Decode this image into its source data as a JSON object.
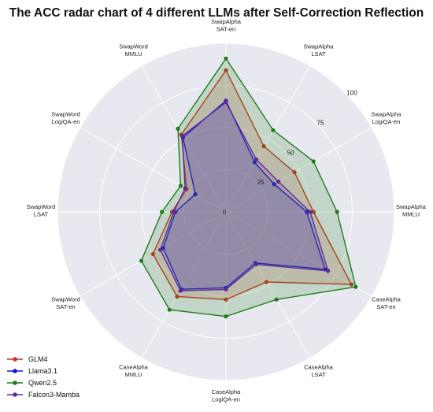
{
  "chart_data": {
    "type": "radar",
    "title": "The ACC radar chart of 4 different LLMs after Self-Correction Reflection",
    "axes": [
      [
        "SwapAlpha",
        "SAT-en"
      ],
      [
        "SwapAlpha",
        "LSAT"
      ],
      [
        "SwapAlpha",
        "LogiQA-en"
      ],
      [
        "SwapAlpha",
        "MMLU"
      ],
      [
        "CaseAlpha",
        "SAT-en"
      ],
      [
        "CaseAlpha",
        "LSAT"
      ],
      [
        "CaseAlpha",
        "LogiQA-en"
      ],
      [
        "CaseAlpha",
        "MMLU"
      ],
      [
        "SwapWord",
        "SAT-en"
      ],
      [
        "SwapWord",
        "LSAT"
      ],
      [
        "SwapWord",
        "LogiQA-en"
      ],
      [
        "SwapWord",
        "MMLU"
      ]
    ],
    "rlim": [
      0,
      100
    ],
    "r_ticks": [
      0,
      25,
      50,
      75,
      100
    ],
    "grid": true,
    "legend_position": "bottom-left",
    "series": [
      {
        "name": "GLM4",
        "color": "#c0391b",
        "values": [
          84,
          45,
          47,
          52,
          86,
          48,
          52,
          58,
          50,
          32,
          27,
          53
        ]
      },
      {
        "name": "Llama3.1",
        "color": "#1515d4",
        "values": [
          66,
          34,
          33,
          48,
          68,
          35,
          45,
          53,
          43,
          30,
          21,
          51
        ]
      },
      {
        "name": "Qwen2.5",
        "color": "#1e7d1a",
        "values": [
          91,
          56,
          60,
          66,
          89,
          60,
          62,
          67,
          58,
          38,
          31,
          57
        ]
      },
      {
        "name": "Falcon3-Mamba",
        "color": "#5e2b9e",
        "values": [
          65,
          36,
          36,
          50,
          70,
          36,
          46,
          54,
          45,
          31,
          28,
          52
        ]
      }
    ]
  }
}
